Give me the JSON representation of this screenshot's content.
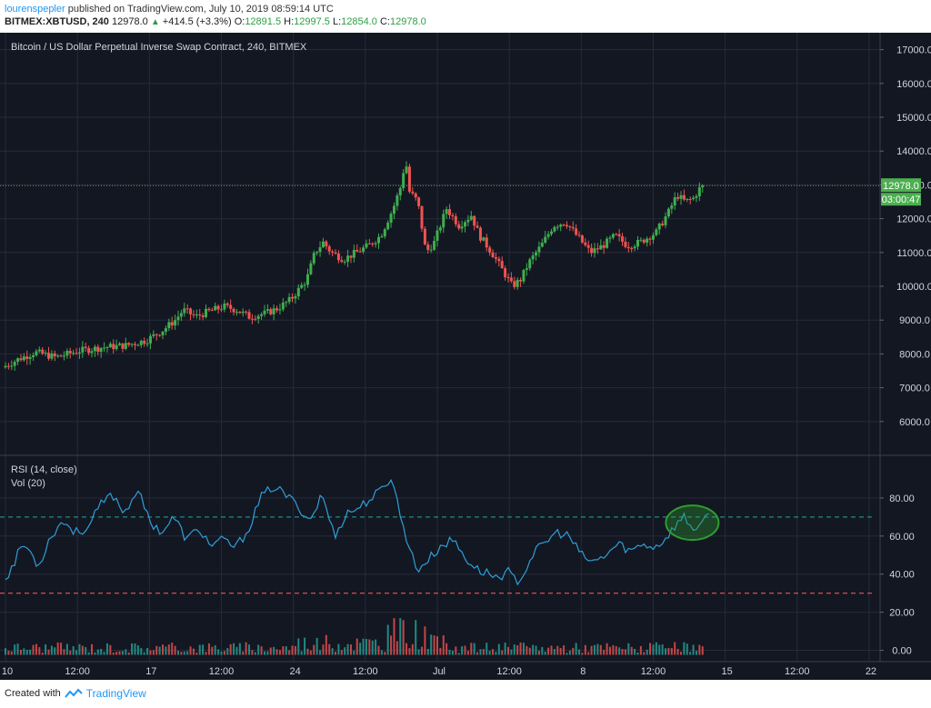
{
  "header": {
    "author": "lourenspepler",
    "published_text": "published on TradingView.com, July 10, 2019 08:59:14 UTC",
    "symbol": "BITMEX:XBTUSD, 240",
    "last": "12978.0",
    "change": "+414.5 (+3.3%)",
    "o_label": "O:",
    "o": "12891.5",
    "h_label": "H:",
    "h": "12997.5",
    "l_label": "L:",
    "l": "12854.0",
    "c_label": "C:",
    "c": "12978.0"
  },
  "footer": {
    "created_with": "Created with",
    "brand": "TradingView"
  },
  "colors": {
    "background": "#131722",
    "grid": "#262b3a",
    "up": "#26a69a",
    "up_candle": "#3fae4f",
    "down": "#ef5350",
    "rsi": "#2f9ed8",
    "price_line": "#4caf50",
    "highlight": "#2e9e2e",
    "axis_text": "#d1d4dc",
    "label_bg": "#4caf50"
  },
  "chart_data": [
    {
      "type": "candlestick",
      "title": "Bitcoin / US Dollar Perpetual Inverse Swap Contract, 240, BITMEX",
      "ylim": [
        5000,
        17500
      ],
      "yticks": [
        "6000.0",
        "7000.0",
        "8000.0",
        "9000.0",
        "10000.0",
        "11000.0",
        "12000.0",
        "13000.0",
        "14000.0",
        "15000.0",
        "16000.0",
        "17000.0"
      ],
      "last_price_label": "12978.0",
      "countdown_label": "03:00:47",
      "path": [
        [
          0,
          7600
        ],
        [
          8,
          7850
        ],
        [
          16,
          8050
        ],
        [
          26,
          7900
        ],
        [
          38,
          8100
        ],
        [
          50,
          8200
        ],
        [
          60,
          8250
        ],
        [
          70,
          8400
        ],
        [
          78,
          8700
        ],
        [
          84,
          9000
        ],
        [
          88,
          9300
        ],
        [
          94,
          9100
        ],
        [
          100,
          9250
        ],
        [
          108,
          9400
        ],
        [
          114,
          9300
        ],
        [
          120,
          9100
        ],
        [
          128,
          9200
        ],
        [
          134,
          9350
        ],
        [
          140,
          9600
        ],
        [
          148,
          10200
        ],
        [
          152,
          11000
        ],
        [
          156,
          11300
        ],
        [
          160,
          11000
        ],
        [
          166,
          10800
        ],
        [
          172,
          11000
        ],
        [
          178,
          11200
        ],
        [
          184,
          11500
        ],
        [
          190,
          12300
        ],
        [
          194,
          13000
        ],
        [
          196,
          13800
        ],
        [
          198,
          12800
        ],
        [
          202,
          12500
        ],
        [
          206,
          11000
        ],
        [
          210,
          11300
        ],
        [
          216,
          12300
        ],
        [
          222,
          11800
        ],
        [
          228,
          12100
        ],
        [
          232,
          11500
        ],
        [
          238,
          11000
        ],
        [
          244,
          10400
        ],
        [
          248,
          10000
        ],
        [
          252,
          10200
        ],
        [
          256,
          10700
        ],
        [
          262,
          11200
        ],
        [
          268,
          11800
        ],
        [
          274,
          11900
        ],
        [
          278,
          11600
        ],
        [
          282,
          11300
        ],
        [
          286,
          11000
        ],
        [
          292,
          11200
        ],
        [
          298,
          11500
        ],
        [
          304,
          11200
        ],
        [
          310,
          11300
        ],
        [
          318,
          11600
        ],
        [
          324,
          12200
        ],
        [
          328,
          12700
        ],
        [
          332,
          12500
        ],
        [
          336,
          12600
        ],
        [
          340,
          12978
        ]
      ]
    },
    {
      "type": "line",
      "name": "RSI (14, close)",
      "ylim": [
        -5,
        100
      ],
      "yticks": [
        "0.00",
        "20.00",
        "40.00",
        "60.00",
        "80.00"
      ],
      "levels": [
        70,
        30
      ],
      "path": [
        [
          0,
          38
        ],
        [
          4,
          45
        ],
        [
          8,
          56
        ],
        [
          12,
          52
        ],
        [
          16,
          44
        ],
        [
          22,
          60
        ],
        [
          28,
          68
        ],
        [
          34,
          62
        ],
        [
          40,
          64
        ],
        [
          46,
          76
        ],
        [
          52,
          82
        ],
        [
          58,
          72
        ],
        [
          64,
          85
        ],
        [
          70,
          68
        ],
        [
          76,
          62
        ],
        [
          82,
          70
        ],
        [
          88,
          58
        ],
        [
          94,
          64
        ],
        [
          100,
          55
        ],
        [
          106,
          58
        ],
        [
          112,
          54
        ],
        [
          118,
          63
        ],
        [
          124,
          80
        ],
        [
          130,
          86
        ],
        [
          136,
          82
        ],
        [
          142,
          76
        ],
        [
          148,
          68
        ],
        [
          154,
          82
        ],
        [
          160,
          60
        ],
        [
          166,
          72
        ],
        [
          172,
          75
        ],
        [
          178,
          80
        ],
        [
          184,
          85
        ],
        [
          188,
          92
        ],
        [
          192,
          70
        ],
        [
          196,
          56
        ],
        [
          200,
          42
        ],
        [
          206,
          48
        ],
        [
          212,
          55
        ],
        [
          218,
          58
        ],
        [
          224,
          48
        ],
        [
          230,
          42
        ],
        [
          236,
          40
        ],
        [
          240,
          38
        ],
        [
          244,
          42
        ],
        [
          248,
          36
        ],
        [
          252,
          40
        ],
        [
          256,
          50
        ],
        [
          262,
          56
        ],
        [
          268,
          62
        ],
        [
          274,
          60
        ],
        [
          280,
          50
        ],
        [
          286,
          46
        ],
        [
          292,
          50
        ],
        [
          298,
          56
        ],
        [
          304,
          52
        ],
        [
          310,
          56
        ],
        [
          316,
          54
        ],
        [
          322,
          60
        ],
        [
          326,
          66
        ],
        [
          330,
          70
        ],
        [
          334,
          64
        ],
        [
          338,
          66
        ],
        [
          342,
          70
        ]
      ]
    },
    {
      "type": "bar",
      "name": "Vol (20)"
    }
  ],
  "x_axis": {
    "labels": [
      {
        "text": "10",
        "pos": 0
      },
      {
        "text": "12:00",
        "pos": 35
      },
      {
        "text": "17",
        "pos": 70
      },
      {
        "text": "12:00",
        "pos": 105
      },
      {
        "text": "24",
        "pos": 140
      },
      {
        "text": "12:00",
        "pos": 175
      },
      {
        "text": "Jul",
        "pos": 210
      },
      {
        "text": "12:00",
        "pos": 245
      },
      {
        "text": "8",
        "pos": 280
      },
      {
        "text": "12:00",
        "pos": 315
      },
      {
        "text": "15",
        "pos": 350
      },
      {
        "text": "12:00",
        "pos": 385
      },
      {
        "text": "22",
        "pos": 420
      }
    ],
    "range": [
      0,
      450
    ]
  }
}
